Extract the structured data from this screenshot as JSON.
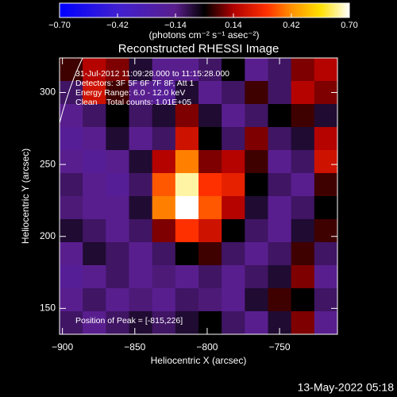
{
  "chart_data": {
    "type": "heatmap",
    "title": "Reconstructed RHESSI Image",
    "colorbar_label": "(photons cm⁻² s⁻¹ asec⁻²)",
    "colorbar_ticks": [
      {
        "value": -0.7,
        "label": "−0.70"
      },
      {
        "value": -0.42,
        "label": "−0.42"
      },
      {
        "value": -0.14,
        "label": "−0.14"
      },
      0.14,
      0.42,
      {
        "value": 0.7,
        "label": "0.70"
      }
    ],
    "colorbar_lim": [
      -0.7,
      0.7
    ],
    "colorscale": [
      [
        -0.7,
        "#0000ff"
      ],
      [
        -0.42,
        "#4020d0"
      ],
      [
        -0.14,
        "#5a1e8c"
      ],
      [
        0,
        "#000000"
      ],
      [
        0.14,
        "#b00000"
      ],
      [
        0.3,
        "#ff3000"
      ],
      [
        0.42,
        "#ff9000"
      ],
      [
        0.56,
        "#ffe000"
      ],
      [
        0.7,
        "#ffffff"
      ]
    ],
    "x_label": "Heliocentric X (arcsec)",
    "y_label": "Heliocentric Y (arcsec)",
    "xlim": [
      -902,
      -710
    ],
    "ylim": [
      132,
      324
    ],
    "xticks": [
      {
        "value": -900,
        "label": "−900"
      },
      {
        "value": -850,
        "label": "−850"
      },
      {
        "value": -800,
        "label": "−800"
      },
      {
        "value": -750,
        "label": "−750"
      }
    ],
    "yticks": [
      150,
      200,
      250,
      300
    ],
    "x": [
      -894,
      -878,
      -862,
      -846,
      -830,
      -814,
      -798,
      -782,
      -766,
      -750,
      -734,
      -718
    ],
    "y": [
      316,
      300,
      284,
      268,
      252,
      236,
      220,
      204,
      188,
      172,
      156,
      140
    ],
    "z": [
      [
        0.05,
        0.15,
        0.1,
        -0.05,
        -0.15,
        -0.15,
        -0.1,
        0.0,
        -0.15,
        -0.1,
        0.1,
        0.15
      ],
      [
        -0.1,
        0.2,
        0.05,
        -0.15,
        -0.18,
        -0.05,
        -0.15,
        -0.1,
        0.05,
        -0.1,
        0.15,
        0.1
      ],
      [
        -0.15,
        -0.1,
        0.0,
        -0.1,
        -0.05,
        0.1,
        -0.05,
        -0.15,
        -0.1,
        0.0,
        0.05,
        -0.05
      ],
      [
        -0.18,
        -0.15,
        -0.05,
        -0.15,
        -0.1,
        0.2,
        0.0,
        -0.1,
        0.1,
        -0.1,
        -0.05,
        0.15
      ],
      [
        -0.15,
        -0.18,
        -0.15,
        -0.05,
        0.15,
        0.4,
        0.1,
        0.15,
        0.05,
        -0.15,
        -0.1,
        0.2
      ],
      [
        -0.1,
        -0.15,
        -0.18,
        -0.1,
        0.35,
        0.65,
        0.3,
        0.25,
        0.0,
        -0.1,
        -0.15,
        0.05
      ],
      [
        -0.12,
        -0.15,
        -0.15,
        -0.05,
        0.4,
        0.7,
        0.35,
        0.15,
        -0.05,
        -0.15,
        -0.1,
        0.0
      ],
      [
        -0.05,
        -0.1,
        -0.15,
        -0.1,
        0.1,
        0.3,
        0.2,
        0.0,
        -0.1,
        -0.15,
        -0.05,
        0.05
      ],
      [
        -0.15,
        -0.05,
        -0.1,
        -0.15,
        -0.1,
        0.0,
        0.05,
        -0.1,
        -0.15,
        -0.1,
        0.05,
        -0.1
      ],
      [
        -0.18,
        -0.15,
        -0.1,
        -0.15,
        -0.12,
        -0.15,
        -0.1,
        -0.15,
        -0.1,
        -0.05,
        0.1,
        -0.15
      ],
      [
        -0.15,
        -0.1,
        -0.15,
        -0.12,
        -0.15,
        -0.1,
        -0.12,
        -0.15,
        -0.05,
        0.05,
        0.0,
        -0.1
      ],
      [
        -0.1,
        -0.15,
        -0.1,
        -0.05,
        -0.1,
        -0.05,
        0.0,
        -0.1,
        -0.15,
        -0.05,
        0.1,
        -0.15
      ]
    ],
    "annotations": [
      "31-Jul-2012 11:09:28.000 to 11:15:28.000",
      "Detectors: 3F 5F 6F 7F 8F, Att 1",
      "Energy Range: 6.0 - 12.0 keV",
      "Clean    Total counts: 1.01E+05"
    ],
    "peak_label": "Position of Peak = [-815,226]",
    "footer": "13-May-2022 05:18"
  }
}
